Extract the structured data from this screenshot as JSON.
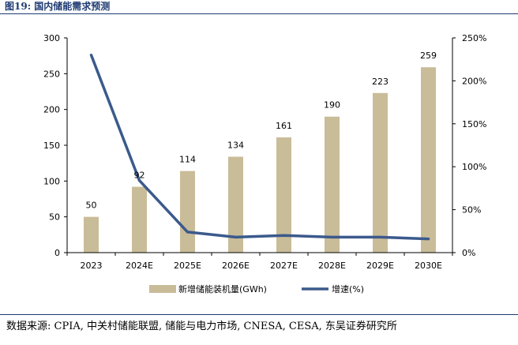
{
  "figure": {
    "title": "图19:  国内储能需求预测",
    "source": "数据来源: CPIA, 中关村储能联盟, 储能与电力市场, CNESA, CESA, 东吴证券研究所"
  },
  "chart_data": {
    "type": "bar",
    "categories": [
      "2023",
      "2024E",
      "2025E",
      "2026E",
      "2027E",
      "2028E",
      "2029E",
      "2030E"
    ],
    "series": [
      {
        "name": "新增储能装机量(GWh)",
        "type": "bar",
        "axis": "left",
        "color": "#c9bc98",
        "values": [
          50,
          92,
          114,
          134,
          161,
          190,
          223,
          259
        ],
        "data_labels": [
          "50",
          "92",
          "114",
          "134",
          "161",
          "190",
          "223",
          "259"
        ]
      },
      {
        "name": "增速(%)",
        "type": "line",
        "axis": "right",
        "color": "#3b5a8c",
        "values": [
          230,
          84,
          24,
          18,
          20,
          18,
          18,
          16
        ]
      }
    ],
    "y_left": {
      "ylim": [
        0,
        300
      ],
      "ticks": [
        "0",
        "50",
        "100",
        "150",
        "200",
        "250",
        "300"
      ]
    },
    "y_right": {
      "ylim": [
        0,
        250
      ],
      "ticks": [
        "0%",
        "50%",
        "100%",
        "150%",
        "200%",
        "250%"
      ]
    },
    "legend_position": "bottom",
    "grid": false
  }
}
